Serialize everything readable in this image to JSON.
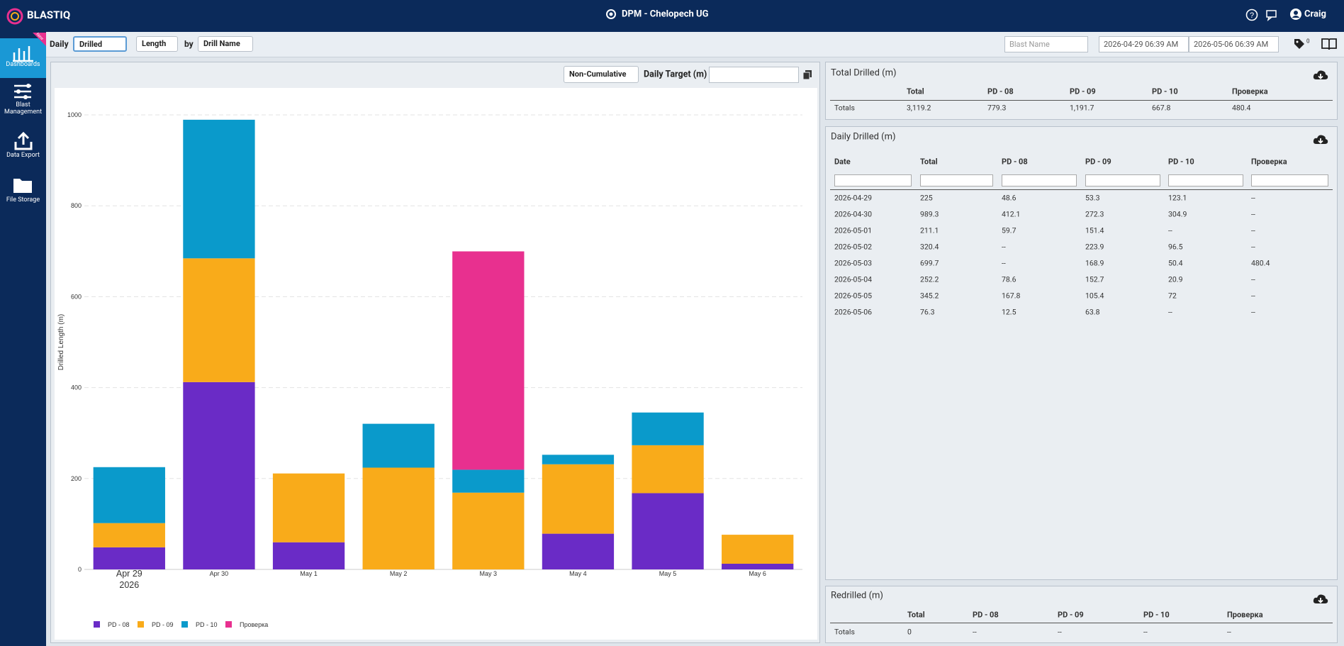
{
  "header": {
    "brand": "BLASTIQ",
    "site": "DPM - Chelopech UG",
    "user": "Craig"
  },
  "sidebar": {
    "badge": "New",
    "items": [
      "Dashboards",
      "Blast Management",
      "Data Export",
      "File Storage"
    ]
  },
  "toolbar": {
    "period": "Daily",
    "measure": "Drilled",
    "metric": "Length",
    "by": "by",
    "group": "Drill Name",
    "blast_placeholder": "Blast Name",
    "date_from": "2026-04-29 06:39 AM",
    "date_to": "2026-05-06 06:39 AM",
    "tag_count": 0
  },
  "chart_panel": {
    "mode": "Non-Cumulative",
    "target_label": "Daily Target (m)"
  },
  "chart_data": {
    "type": "stacked_bar",
    "y_label": "Drilled Length (m)",
    "categories": [
      "Apr 29",
      "Apr 30",
      "May 1",
      "May 2",
      "May 3",
      "May 4",
      "May 5",
      "May 6"
    ],
    "first_category_year": "2026",
    "series": [
      {
        "name": "PD - 08",
        "color": "#6a2bc6",
        "values": [
          48.6,
          412.1,
          59.7,
          null,
          null,
          78.6,
          167.8,
          12.5
        ]
      },
      {
        "name": "PD - 09",
        "color": "#f9ab1a",
        "values": [
          53.3,
          272.3,
          151.4,
          223.9,
          168.9,
          152.7,
          105.4,
          63.8
        ]
      },
      {
        "name": "PD - 10",
        "color": "#0a9acb",
        "values": [
          123.1,
          304.9,
          null,
          96.5,
          50.4,
          20.9,
          72,
          null
        ]
      },
      {
        "name": "Проверка",
        "color": "#e8308f",
        "values": [
          null,
          null,
          null,
          null,
          480.4,
          null,
          null,
          null
        ]
      }
    ],
    "ylim": [
      0,
      1000
    ],
    "yticks": [
      0,
      200,
      400,
      600,
      800,
      1000
    ],
    "grid": true,
    "legend": "bottom-left"
  },
  "total_table": {
    "title": "Total Drilled (m)",
    "columns": [
      "Total",
      "PD - 08",
      "PD - 09",
      "PD - 10",
      "Проверка"
    ],
    "rows": [
      [
        "Totals",
        "3,119.2",
        "779.3",
        "1,191.7",
        "667.8",
        "480.4"
      ]
    ]
  },
  "daily_table": {
    "title": "Daily Drilled (m)",
    "columns": [
      "Date",
      "Total",
      "PD - 08",
      "PD - 09",
      "PD - 10",
      "Проверка"
    ],
    "rows": [
      [
        "2026-04-29",
        225,
        48.6,
        53.3,
        123.1,
        "--"
      ],
      [
        "2026-04-30",
        989.3,
        412.1,
        272.3,
        304.9,
        "--"
      ],
      [
        "2026-05-01",
        211.1,
        59.7,
        151.4,
        "--",
        "--"
      ],
      [
        "2026-05-02",
        320.4,
        "--",
        223.9,
        96.5,
        "--"
      ],
      [
        "2026-05-03",
        699.7,
        "--",
        168.9,
        50.4,
        480.4
      ],
      [
        "2026-05-04",
        252.2,
        78.6,
        152.7,
        20.9,
        "--"
      ],
      [
        "2026-05-05",
        345.2,
        167.8,
        105.4,
        72,
        "--"
      ],
      [
        "2026-05-06",
        76.3,
        12.5,
        63.8,
        "--",
        "--"
      ]
    ]
  },
  "redrilled_table": {
    "title": "Redrilled (m)",
    "columns": [
      "Total",
      "PD - 08",
      "PD - 09",
      "PD - 10",
      "Проверка"
    ],
    "rows": [
      [
        "Totals",
        0,
        "--",
        "--",
        "--",
        "--"
      ]
    ]
  }
}
